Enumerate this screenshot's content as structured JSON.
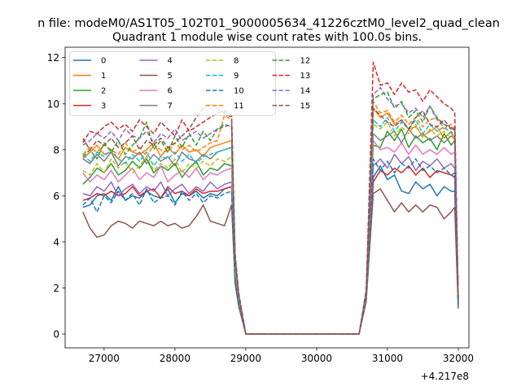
{
  "figure": {
    "suptitle": "n file: modeM0/AS1T05_102T01_9000005634_41226cztM0_level2_quad_clean",
    "background": "#ffffff"
  },
  "chart_data": {
    "type": "line",
    "title": "Quadrant 1 module wise count rates with 100.0s bins.",
    "xlabel": "",
    "ylabel": "",
    "x_offset_label": "+4.217e8",
    "xlim": [
      26450,
      32150
    ],
    "ylim": [
      -0.6,
      12.45
    ],
    "xticks": [
      27000,
      28000,
      29000,
      30000,
      31000,
      32000
    ],
    "xtick_labels": [
      "27000",
      "28000",
      "29000",
      "30000",
      "31000",
      "32000"
    ],
    "yticks": [
      0,
      2,
      4,
      6,
      8,
      10,
      12
    ],
    "ytick_labels": [
      "0",
      "2",
      "4",
      "6",
      "8",
      "10",
      "12"
    ],
    "grid": false,
    "legend_position": "top-left",
    "legend_columns": 4,
    "x": [
      26700,
      26800,
      26900,
      27000,
      27100,
      27200,
      27300,
      27400,
      27500,
      27600,
      27700,
      27800,
      27900,
      28000,
      28100,
      28200,
      28300,
      28400,
      28500,
      28600,
      28700,
      28800,
      28850,
      28900,
      29000,
      29100,
      29200,
      29300,
      29400,
      29500,
      29600,
      29700,
      29800,
      29900,
      30000,
      30100,
      30200,
      30300,
      30400,
      30500,
      30600,
      30700,
      30800,
      30900,
      31000,
      31100,
      31200,
      31300,
      31400,
      31500,
      31600,
      31700,
      31800,
      31900,
      31950,
      32000
    ],
    "series": [
      {
        "name": "0",
        "color": "#1f77b4",
        "dash": "solid",
        "values": [
          5.5,
          5.6,
          6.0,
          6.1,
          5.8,
          6.4,
          5.8,
          6.0,
          5.9,
          6.2,
          6.0,
          5.9,
          6.3,
          5.7,
          6.1,
          6.0,
          6.2,
          5.9,
          6.1,
          6.0,
          6.3,
          6.4,
          2.5,
          1.4,
          0,
          0,
          0,
          0,
          0,
          0,
          0,
          0,
          0,
          0,
          0,
          0,
          0,
          0,
          0,
          0,
          0,
          1.5,
          6.8,
          7.3,
          6.7,
          6.9,
          6.2,
          6.1,
          6.6,
          6.3,
          6.5,
          6.0,
          6.4,
          6.2,
          6.2,
          1.3
        ]
      },
      {
        "name": "1",
        "color": "#ff7f0e",
        "dash": "solid",
        "values": [
          7.6,
          7.9,
          8.2,
          7.8,
          7.9,
          7.6,
          8.1,
          7.9,
          7.8,
          8.0,
          8.3,
          7.7,
          8.1,
          7.8,
          8.2,
          7.9,
          8.0,
          7.7,
          8.1,
          8.2,
          8.3,
          8.4,
          3.0,
          1.6,
          0,
          0,
          0,
          0,
          0,
          0,
          0,
          0,
          0,
          0,
          0,
          0,
          0,
          0,
          0,
          0,
          0,
          1.7,
          9.8,
          9.4,
          9.6,
          9.1,
          9.3,
          8.9,
          9.0,
          8.6,
          8.8,
          9.0,
          8.5,
          8.8,
          8.4,
          1.5
        ]
      },
      {
        "name": "2",
        "color": "#2ca02c",
        "dash": "solid",
        "values": [
          6.5,
          6.8,
          7.2,
          7.0,
          7.4,
          6.9,
          7.1,
          7.5,
          7.2,
          7.6,
          7.0,
          7.3,
          7.1,
          7.4,
          6.8,
          7.2,
          7.5,
          6.9,
          7.2,
          7.1,
          7.4,
          7.3,
          2.7,
          1.5,
          0,
          0,
          0,
          0,
          0,
          0,
          0,
          0,
          0,
          0,
          0,
          0,
          0,
          0,
          0,
          0,
          0,
          1.6,
          8.2,
          8.1,
          8.8,
          8.4,
          8.9,
          8.1,
          8.6,
          8.3,
          8.5,
          8.0,
          8.7,
          8.2,
          8.4,
          1.4
        ]
      },
      {
        "name": "3",
        "color": "#d62728",
        "dash": "solid",
        "values": [
          5.8,
          5.9,
          6.1,
          6.0,
          6.2,
          6.0,
          6.1,
          6.4,
          6.0,
          6.2,
          6.3,
          5.9,
          6.4,
          6.1,
          6.2,
          6.0,
          6.3,
          6.1,
          6.2,
          6.2,
          6.3,
          6.4,
          2.5,
          1.4,
          0,
          0,
          0,
          0,
          0,
          0,
          0,
          0,
          0,
          0,
          0,
          0,
          0,
          0,
          0,
          0,
          0,
          1.5,
          6.6,
          7.1,
          6.9,
          7.2,
          7.0,
          7.3,
          6.9,
          7.2,
          6.8,
          7.1,
          7.0,
          6.9,
          6.8,
          1.3
        ]
      },
      {
        "name": "4",
        "color": "#9467bd",
        "dash": "solid",
        "values": [
          6.1,
          6.0,
          6.4,
          6.2,
          6.6,
          6.0,
          6.3,
          6.5,
          6.1,
          6.4,
          6.2,
          6.6,
          6.0,
          6.3,
          6.5,
          6.1,
          6.4,
          6.2,
          6.6,
          6.3,
          6.5,
          6.6,
          2.6,
          1.4,
          0,
          0,
          0,
          0,
          0,
          0,
          0,
          0,
          0,
          0,
          0,
          0,
          0,
          0,
          0,
          0,
          0,
          1.5,
          7.3,
          7.6,
          7.2,
          7.8,
          7.4,
          7.7,
          7.1,
          7.5,
          7.3,
          7.6,
          7.2,
          7.4,
          7.2,
          1.3
        ]
      },
      {
        "name": "5",
        "color": "#8c564b",
        "dash": "solid",
        "values": [
          5.3,
          4.6,
          4.2,
          4.3,
          4.7,
          4.9,
          4.8,
          4.6,
          4.9,
          4.8,
          4.7,
          4.9,
          4.7,
          4.8,
          4.6,
          4.7,
          5.1,
          5.6,
          4.9,
          4.8,
          4.7,
          5.6,
          2.2,
          1.2,
          0,
          0,
          0,
          0,
          0,
          0,
          0,
          0,
          0,
          0,
          0,
          0,
          0,
          0,
          0,
          0,
          0,
          1.4,
          6.1,
          6.3,
          5.8,
          5.3,
          5.7,
          5.3,
          5.6,
          5.3,
          5.6,
          5.5,
          5.0,
          5.3,
          5.5,
          1.1
        ]
      },
      {
        "name": "6",
        "color": "#e377c2",
        "dash": "solid",
        "values": [
          7.0,
          6.6,
          6.9,
          6.7,
          7.1,
          6.6,
          6.9,
          7.2,
          6.7,
          7.0,
          6.8,
          7.3,
          6.6,
          6.9,
          7.1,
          6.8,
          7.2,
          6.7,
          7.0,
          6.9,
          7.1,
          7.2,
          2.8,
          1.5,
          0,
          0,
          0,
          0,
          0,
          0,
          0,
          0,
          0,
          0,
          0,
          0,
          0,
          0,
          0,
          0,
          0,
          1.6,
          8.4,
          8.0,
          8.1,
          7.9,
          8.3,
          7.8,
          8.2,
          7.8,
          8.0,
          7.8,
          8.1,
          7.8,
          7.9,
          1.5
        ]
      },
      {
        "name": "7",
        "color": "#7f7f7f",
        "dash": "solid",
        "values": [
          7.6,
          7.4,
          7.8,
          7.5,
          7.9,
          7.3,
          7.7,
          7.6,
          7.9,
          7.4,
          7.8,
          7.5,
          7.7,
          7.3,
          7.9,
          7.6,
          7.5,
          7.8,
          7.6,
          7.9,
          8.0,
          8.1,
          3.0,
          1.6,
          0,
          0,
          0,
          0,
          0,
          0,
          0,
          0,
          0,
          0,
          0,
          0,
          0,
          0,
          0,
          0,
          0,
          1.7,
          8.7,
          8.4,
          8.6,
          8.8,
          8.3,
          8.9,
          8.5,
          8.7,
          8.4,
          8.6,
          8.3,
          8.6,
          8.5,
          1.5
        ]
      },
      {
        "name": "8",
        "color": "#bcbd22",
        "dash": "dashed",
        "values": [
          7.1,
          6.9,
          7.4,
          7.0,
          7.6,
          7.2,
          7.5,
          7.0,
          7.3,
          7.7,
          7.1,
          7.4,
          7.2,
          7.6,
          7.0,
          7.4,
          7.2,
          7.5,
          7.3,
          7.6,
          7.5,
          7.7,
          2.9,
          1.5,
          0,
          0,
          0,
          0,
          0,
          0,
          0,
          0,
          0,
          0,
          0,
          0,
          0,
          0,
          0,
          0,
          0,
          1.6,
          9.1,
          8.9,
          9.2,
          8.6,
          9.0,
          8.7,
          9.1,
          8.5,
          8.9,
          8.6,
          8.8,
          8.5,
          8.6,
          1.5
        ]
      },
      {
        "name": "9",
        "color": "#17becf",
        "dash": "dashed",
        "values": [
          7.8,
          7.5,
          7.9,
          7.7,
          8.0,
          7.6,
          7.4,
          7.8,
          7.5,
          7.9,
          7.3,
          7.7,
          7.6,
          7.9,
          7.5,
          7.8,
          7.4,
          7.7,
          7.8,
          7.9,
          8.0,
          8.1,
          3.0,
          1.6,
          0,
          0,
          0,
          0,
          0,
          0,
          0,
          0,
          0,
          0,
          0,
          0,
          0,
          0,
          0,
          0,
          0,
          1.7,
          9.3,
          9.0,
          9.4,
          8.8,
          9.2,
          8.9,
          9.3,
          8.7,
          9.1,
          8.8,
          9.0,
          8.7,
          8.8,
          1.5
        ]
      },
      {
        "name": "10",
        "color": "#1f77b4",
        "dash": "dashed",
        "values": [
          5.6,
          5.9,
          5.3,
          6.0,
          5.7,
          6.2,
          5.8,
          6.1,
          5.6,
          6.3,
          5.7,
          5.9,
          6.0,
          5.6,
          6.2,
          5.8,
          6.1,
          5.7,
          6.0,
          5.9,
          6.1,
          6.2,
          2.4,
          1.3,
          0,
          0,
          0,
          0,
          0,
          0,
          0,
          0,
          0,
          0,
          0,
          0,
          0,
          0,
          0,
          0,
          0,
          1.5,
          7.6,
          7.1,
          7.5,
          7.0,
          7.4,
          7.2,
          7.6,
          7.1,
          7.3,
          7.0,
          7.2,
          6.9,
          7.0,
          1.3
        ]
      },
      {
        "name": "11",
        "color": "#ff7f0e",
        "dash": "dashed",
        "values": [
          7.8,
          8.1,
          7.9,
          8.2,
          8.0,
          7.8,
          8.3,
          7.9,
          8.1,
          7.7,
          8.2,
          8.0,
          7.9,
          8.3,
          8.0,
          8.2,
          7.9,
          8.1,
          8.3,
          8.4,
          9.5,
          9.3,
          3.4,
          1.7,
          0,
          0,
          0,
          0,
          0,
          0,
          0,
          0,
          0,
          0,
          0,
          0,
          0,
          0,
          0,
          0,
          0,
          1.8,
          10.1,
          9.6,
          9.7,
          9.2,
          9.5,
          9.1,
          9.4,
          9.0,
          9.3,
          9.4,
          8.9,
          9.1,
          8.9,
          1.6
        ]
      },
      {
        "name": "12",
        "color": "#2ca02c",
        "dash": "dashed",
        "values": [
          7.7,
          8.0,
          7.6,
          8.3,
          7.9,
          8.4,
          7.8,
          8.2,
          8.5,
          9.2,
          8.0,
          8.4,
          7.9,
          8.6,
          8.1,
          8.7,
          8.2,
          8.8,
          8.4,
          8.9,
          9.1,
          9.0,
          3.3,
          1.7,
          0,
          0,
          0,
          0,
          0,
          0,
          0,
          0,
          0,
          0,
          0,
          0,
          0,
          0,
          0,
          0,
          0,
          1.8,
          10.2,
          10.4,
          10.5,
          9.8,
          10.1,
          9.4,
          9.7,
          9.2,
          9.9,
          9.4,
          9.1,
          8.9,
          9.0,
          1.6
        ]
      },
      {
        "name": "13",
        "color": "#d62728",
        "dash": "dashed",
        "values": [
          8.3,
          8.8,
          8.7,
          9.0,
          9.2,
          8.9,
          9.1,
          8.8,
          9.3,
          9.0,
          8.7,
          9.2,
          8.9,
          8.6,
          9.3,
          8.8,
          9.0,
          9.2,
          9.4,
          9.6,
          9.7,
          9.5,
          3.5,
          1.8,
          0,
          0,
          0,
          0,
          0,
          0,
          0,
          0,
          0,
          0,
          0,
          0,
          0,
          0,
          0,
          0,
          0,
          1.9,
          11.8,
          10.8,
          10.9,
          10.4,
          10.9,
          10.5,
          10.6,
          10.1,
          10.6,
          10.3,
          10.0,
          9.8,
          9.6,
          1.7
        ]
      },
      {
        "name": "14",
        "color": "#9467bd",
        "dash": "dashed",
        "values": [
          8.2,
          8.4,
          8.7,
          8.5,
          8.8,
          8.4,
          8.9,
          8.6,
          8.5,
          8.8,
          8.3,
          8.7,
          8.5,
          8.9,
          8.4,
          8.6,
          8.8,
          8.5,
          8.7,
          8.9,
          9.0,
          9.1,
          3.4,
          1.7,
          0,
          0,
          0,
          0,
          0,
          0,
          0,
          0,
          0,
          0,
          0,
          0,
          0,
          0,
          0,
          0,
          0,
          1.8,
          10.4,
          10.7,
          10.2,
          9.9,
          10.0,
          9.6,
          9.8,
          9.4,
          9.9,
          9.3,
          9.1,
          9.0,
          8.8,
          1.6
        ]
      },
      {
        "name": "15",
        "color": "#8c564b",
        "dash": "dashed",
        "values": [
          8.5,
          8.0,
          8.4,
          8.2,
          8.5,
          8.1,
          8.3,
          8.6,
          8.0,
          8.4,
          8.2,
          8.5,
          8.1,
          8.3,
          8.6,
          8.9,
          9.4,
          9.8,
          10.0,
          9.8,
          9.6,
          9.4,
          3.4,
          1.7,
          0,
          0,
          0,
          0,
          0,
          0,
          0,
          0,
          0,
          0,
          0,
          0,
          0,
          0,
          0,
          0,
          0,
          1.8,
          9.8,
          9.5,
          9.2,
          9.0,
          9.3,
          8.9,
          9.4,
          9.7,
          9.1,
          9.0,
          9.3,
          8.9,
          8.9,
          1.6
        ]
      }
    ]
  }
}
